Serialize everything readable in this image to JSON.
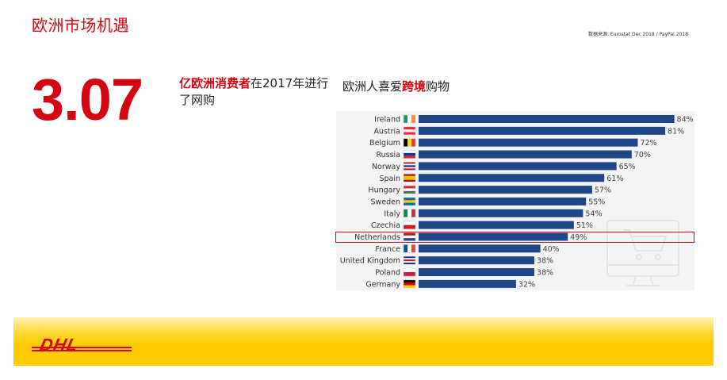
{
  "page_title": "欧洲市场机遇",
  "source_note": "数据来源: Eurostat Dec 2018 / PayPal 2018",
  "stat": {
    "value": "3.07",
    "caption_highlight": "亿欧洲消费者",
    "caption_rest": "在2017年进行了网购"
  },
  "chart_heading": {
    "part1": "欧洲人喜爱",
    "highlight": "跨境",
    "part2": "购物"
  },
  "highlight_color": "#d40511",
  "bar_color": "#1f4788",
  "logo_text": "DHL",
  "chart_data": {
    "type": "bar",
    "orientation": "horizontal",
    "categories": [
      "Ireland",
      "Austria",
      "Belgium",
      "Russia",
      "Norway",
      "Spain",
      "Hungary",
      "Sweden",
      "Italy",
      "Czechia",
      "Netherlands",
      "France",
      "United Kingdom",
      "Poland",
      "Germany"
    ],
    "values": [
      84,
      81,
      72,
      70,
      65,
      61,
      57,
      55,
      54,
      51,
      49,
      40,
      38,
      38,
      32
    ],
    "value_labels": [
      "84%",
      "81%",
      "72%",
      "70%",
      "65%",
      "61%",
      "57%",
      "55%",
      "54%",
      "51%",
      "49%",
      "40%",
      "38%",
      "38%",
      "32%"
    ],
    "highlighted_category": "Netherlands",
    "xlim": [
      0,
      100
    ],
    "flags": [
      {
        "colors": [
          "#169b62",
          "#ffffff",
          "#ff883e"
        ],
        "dir": "v"
      },
      {
        "colors": [
          "#ed2939",
          "#ffffff",
          "#ed2939"
        ],
        "dir": "h"
      },
      {
        "colors": [
          "#000000",
          "#fdda24",
          "#ef3340"
        ],
        "dir": "v"
      },
      {
        "colors": [
          "#ffffff",
          "#0039a6",
          "#d52b1e"
        ],
        "dir": "h"
      },
      {
        "colors": [
          "#ba0c2f",
          "#ffffff",
          "#00205b",
          "#ffffff",
          "#ba0c2f"
        ],
        "dir": "h"
      },
      {
        "colors": [
          "#aa151b",
          "#f1bf00",
          "#f1bf00",
          "#aa151b"
        ],
        "dir": "h"
      },
      {
        "colors": [
          "#ce2939",
          "#ffffff",
          "#477050"
        ],
        "dir": "h"
      },
      {
        "colors": [
          "#006aa7",
          "#fecc00",
          "#006aa7"
        ],
        "dir": "h"
      },
      {
        "colors": [
          "#009246",
          "#ffffff",
          "#ce2b37"
        ],
        "dir": "v"
      },
      {
        "colors": [
          "#ffffff",
          "#d7141a"
        ],
        "dir": "h"
      },
      {
        "colors": [
          "#ae1c28",
          "#ffffff",
          "#21468b"
        ],
        "dir": "h"
      },
      {
        "colors": [
          "#0055a4",
          "#ffffff",
          "#ef4135"
        ],
        "dir": "v"
      },
      {
        "colors": [
          "#012169",
          "#ffffff",
          "#c8102e",
          "#ffffff",
          "#012169"
        ],
        "dir": "h"
      },
      {
        "colors": [
          "#ffffff",
          "#dc143c"
        ],
        "dir": "h"
      },
      {
        "colors": [
          "#000000",
          "#dd0000",
          "#ffce00"
        ],
        "dir": "h"
      }
    ]
  }
}
